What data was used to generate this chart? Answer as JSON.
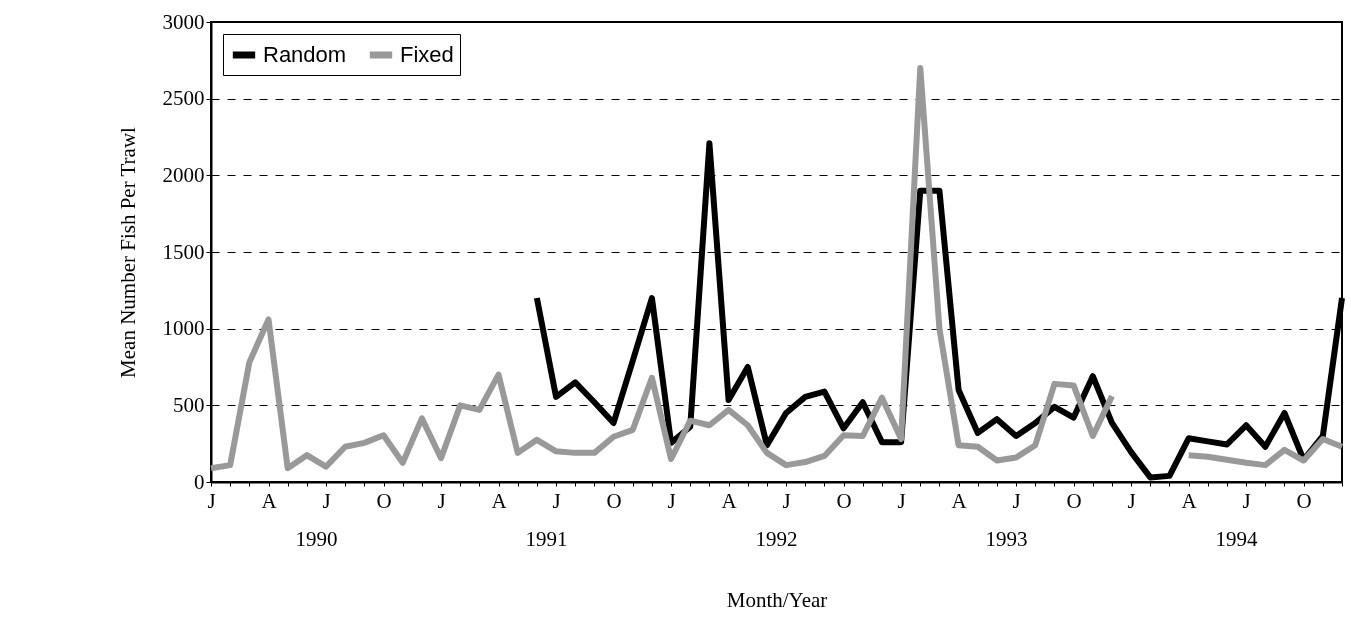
{
  "chart_data": {
    "type": "line",
    "xlabel": "Month/Year",
    "ylabel": "Mean Number Fish Per Trawl",
    "categories": [
      "J",
      null,
      null,
      "A",
      null,
      null,
      "J",
      null,
      null,
      "O",
      null,
      null,
      "J",
      null,
      null,
      "A",
      null,
      null,
      "J",
      null,
      null,
      "O",
      null,
      null,
      "J",
      null,
      null,
      "A",
      null,
      null,
      "J",
      null,
      null,
      "O",
      null,
      null,
      "J",
      null,
      null,
      "A",
      null,
      null,
      "J",
      null,
      null,
      "O",
      null,
      null,
      "J",
      null,
      null,
      "A",
      null,
      null,
      "J",
      null,
      null,
      "O",
      null,
      null
    ],
    "series": [
      {
        "name": "Random",
        "color": "#000000",
        "values": [
          null,
          null,
          null,
          null,
          null,
          null,
          null,
          null,
          null,
          null,
          null,
          null,
          null,
          null,
          null,
          null,
          null,
          1200,
          555,
          650,
          520,
          385,
          790,
          1200,
          255,
          360,
          2210,
          535,
          750,
          240,
          450,
          555,
          590,
          350,
          520,
          260,
          260,
          1900,
          1900,
          600,
          320,
          410,
          300,
          385,
          490,
          420,
          690,
          385,
          195,
          30,
          40,
          285,
          265,
          245,
          370,
          230,
          450,
          145,
          300,
          1200
        ]
      },
      {
        "name": "Fixed",
        "color": "#999999",
        "values": [
          90,
          110,
          780,
          1060,
          90,
          175,
          100,
          230,
          255,
          305,
          125,
          415,
          155,
          500,
          470,
          700,
          190,
          275,
          200,
          190,
          190,
          295,
          340,
          680,
          150,
          400,
          370,
          470,
          370,
          190,
          110,
          130,
          170,
          305,
          300,
          550,
          280,
          2700,
          1000,
          240,
          230,
          140,
          160,
          240,
          640,
          630,
          300,
          560,
          null,
          null,
          null,
          175,
          165,
          145,
          125,
          110,
          210,
          140,
          280,
          230
        ]
      }
    ],
    "ylim": [
      0,
      3000
    ],
    "yticks": [
      0,
      500,
      1000,
      1500,
      2000,
      2500,
      3000
    ],
    "grid": "y",
    "legend": "top left",
    "annotations": [
      "1990",
      "1991",
      "1992",
      "1993",
      "1994"
    ]
  }
}
